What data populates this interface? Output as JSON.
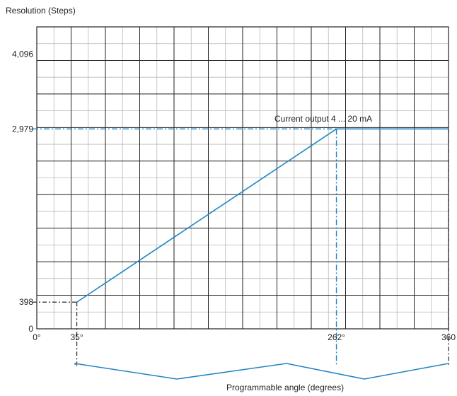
{
  "chart_data": {
    "type": "line",
    "ylabel": "Resolution (Steps)",
    "xlabel": "Programmable angle (degrees)",
    "xlim": [
      0,
      360
    ],
    "ylim": [
      0,
      4500
    ],
    "x_ticks": [
      {
        "value": 0,
        "label": "0°"
      },
      {
        "value": 35,
        "label": "35°"
      },
      {
        "value": 262,
        "label": "262°"
      },
      {
        "value": 360,
        "label": "360"
      }
    ],
    "y_ticks": [
      {
        "value": 0,
        "label": "0"
      },
      {
        "value": 398,
        "label": "398"
      },
      {
        "value": 2979,
        "label": "2,979"
      },
      {
        "value": 4096,
        "label": "4,096"
      }
    ],
    "grid": true,
    "series": [
      {
        "name": "Current output 4 ... 20 mA",
        "x": [
          35,
          262,
          360
        ],
        "y": [
          398,
          2979,
          2979
        ],
        "color": "#1f84c4"
      }
    ],
    "annotation": "Current output 4 ... 20 mA"
  }
}
